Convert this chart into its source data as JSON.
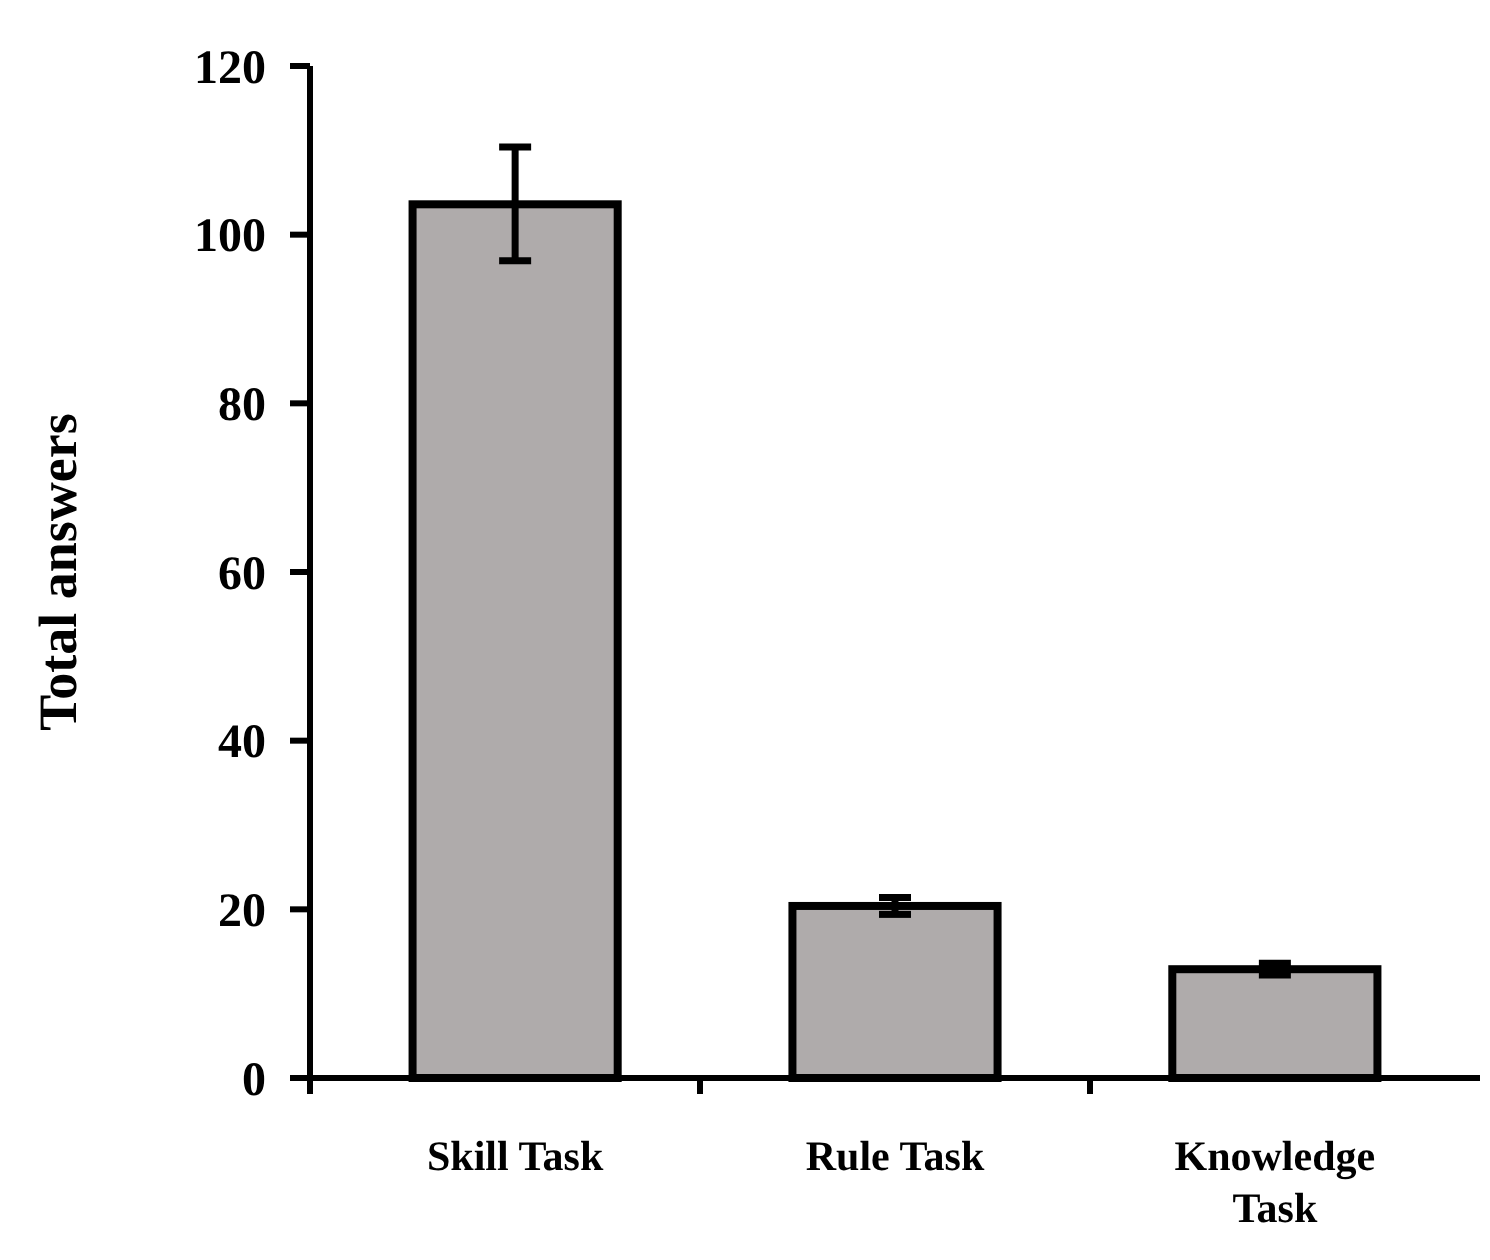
{
  "chart_data": {
    "type": "bar",
    "ylabel": "Total answers",
    "categories": [
      "Skill Task",
      "Rule Task",
      "Knowledge\nTask"
    ],
    "values": [
      103.6,
      20.4,
      12.9
    ],
    "errors": [
      [
        96.9,
        110.4
      ],
      [
        19.4,
        21.4
      ],
      [
        12.2,
        13.6
      ]
    ],
    "color": "#afabab",
    "ylim": [
      0,
      120
    ],
    "yticks": [
      0,
      20,
      40,
      60,
      80,
      100,
      120
    ],
    "grid": false
  }
}
